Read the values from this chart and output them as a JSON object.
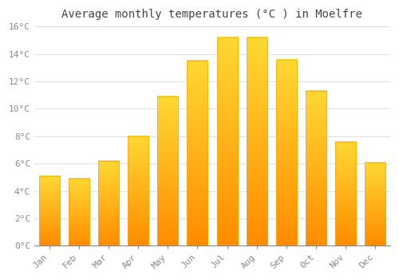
{
  "title": "Average monthly temperatures (°C ) in Moelfre",
  "months": [
    "Jan",
    "Feb",
    "Mar",
    "Apr",
    "May",
    "Jun",
    "Jul",
    "Aug",
    "Sep",
    "Oct",
    "Nov",
    "Dec"
  ],
  "values": [
    5.1,
    4.9,
    6.2,
    8.0,
    10.9,
    13.5,
    15.2,
    15.2,
    13.6,
    11.3,
    7.6,
    6.1
  ],
  "bar_color_top": "#FFC107",
  "bar_color_bottom": "#FF8C00",
  "background_color": "#FFFFFF",
  "plot_bg_color": "#F5F5F5",
  "grid_color": "#E0E0E0",
  "ylim": [
    0,
    16
  ],
  "yticks": [
    0,
    2,
    4,
    6,
    8,
    10,
    12,
    14,
    16
  ],
  "title_fontsize": 10,
  "tick_fontsize": 8,
  "tick_color": "#888888"
}
